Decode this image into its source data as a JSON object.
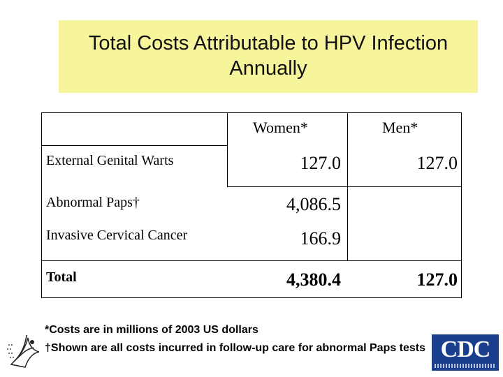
{
  "title": "Total Costs Attributable to HPV Infection Annually",
  "table": {
    "columns": [
      "Women*",
      "Men*"
    ],
    "rows": [
      {
        "label": "External Genital Warts",
        "women": "127.0",
        "men": "127.0"
      },
      {
        "label": "Abnormal Paps†",
        "women": "4,086.5",
        "men": ""
      },
      {
        "label": "Invasive Cervical Cancer",
        "women": "166.9",
        "men": ""
      },
      {
        "label": "Total",
        "women": "4,380.4",
        "men": "127.0"
      }
    ]
  },
  "footnotes": [
    "*Costs are in millions of 2003 US dollars",
    "†Shown are all costs incurred in follow-up care for abnormal Paps tests"
  ],
  "logos": {
    "cdc_text": "CDC",
    "left_logo": "hhs-eagle-logo"
  },
  "colors": {
    "title_background": "#f6f59b",
    "cdc_blue": "#1a3f8f"
  }
}
